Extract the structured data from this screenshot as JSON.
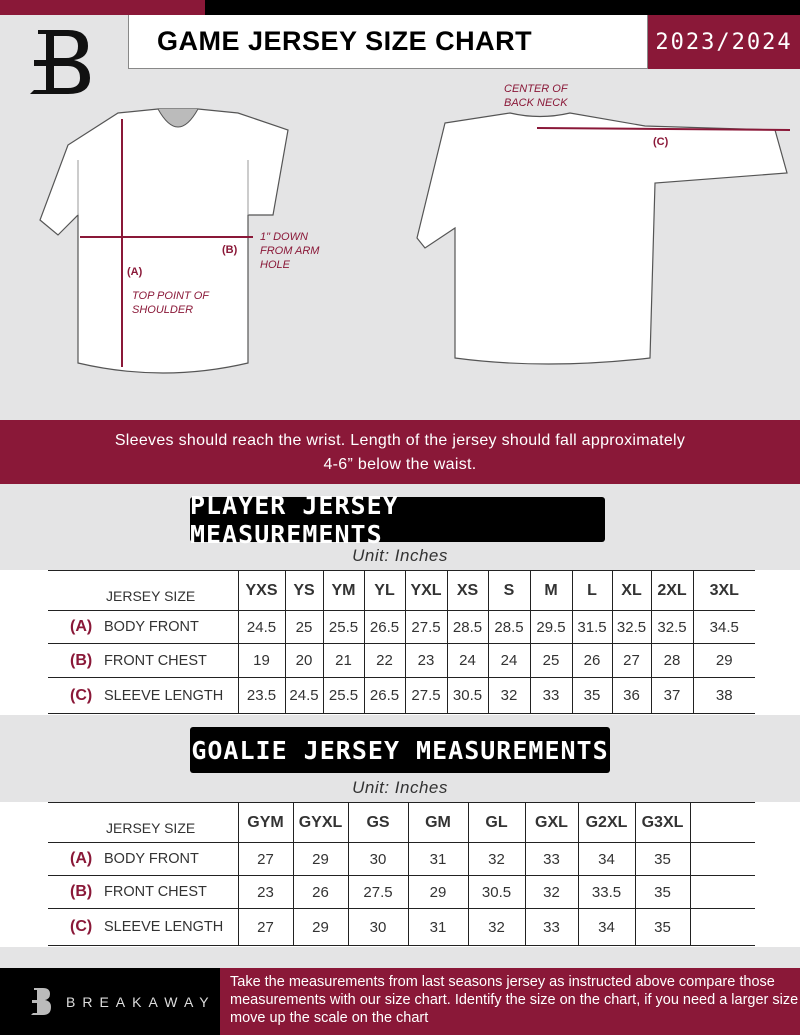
{
  "header": {
    "title": "GAME JERSEY SIZE CHART",
    "season": "2023/2024",
    "logo": "breakaway-b-logo"
  },
  "diagram": {
    "center_back_neck": "CENTER OF BACK NECK",
    "label_a": "(A)",
    "label_b": "(B)",
    "label_c": "(C)",
    "down_note": "1\" DOWN FROM ARM HOLE",
    "shoulder_note": "TOP POINT OF SHOULDER"
  },
  "instructions": "Sleeves should reach the wrist. Length of the jersey should fall approximately 4-6” below the waist.",
  "player": {
    "title": "PLAYER JERSEY MEASUREMENTS",
    "unit": "Unit: Inches",
    "size_label": "JERSEY SIZE",
    "sizes": [
      "YXS",
      "YS",
      "YM",
      "YL",
      "YXL",
      "XS",
      "S",
      "M",
      "L",
      "XL",
      "2XL",
      "3XL"
    ],
    "rows": [
      {
        "letter": "(A)",
        "label": "BODY FRONT",
        "values": [
          "24.5",
          "25",
          "25.5",
          "26.5",
          "27.5",
          "28.5",
          "28.5",
          "29.5",
          "31.5",
          "32.5",
          "32.5",
          "34.5"
        ]
      },
      {
        "letter": "(B)",
        "label": "FRONT CHEST",
        "values": [
          "19",
          "20",
          "21",
          "22",
          "23",
          "24",
          "24",
          "25",
          "26",
          "27",
          "28",
          "29"
        ]
      },
      {
        "letter": "(C)",
        "label": "SLEEVE LENGTH",
        "values": [
          "23.5",
          "24.5",
          "25.5",
          "26.5",
          "27.5",
          "30.5",
          "32",
          "33",
          "35",
          "36",
          "37",
          "38"
        ]
      }
    ]
  },
  "goalie": {
    "title": "GOALIE JERSEY MEASUREMENTS",
    "unit": "Unit: Inches",
    "size_label": "JERSEY SIZE",
    "sizes": [
      "GYM",
      "GYXL",
      "GS",
      "GM",
      "GL",
      "GXL",
      "G2XL",
      "G3XL",
      ""
    ],
    "rows": [
      {
        "letter": "(A)",
        "label": "BODY FRONT",
        "values": [
          "27",
          "29",
          "30",
          "31",
          "32",
          "33",
          "34",
          "35",
          ""
        ]
      },
      {
        "letter": "(B)",
        "label": "FRONT CHEST",
        "values": [
          "23",
          "26",
          "27.5",
          "29",
          "30.5",
          "32",
          "33.5",
          "35",
          ""
        ]
      },
      {
        "letter": "(C)",
        "label": "SLEEVE LENGTH",
        "values": [
          "27",
          "29",
          "30",
          "31",
          "32",
          "33",
          "34",
          "35",
          ""
        ]
      }
    ]
  },
  "footer": {
    "brand": "BREAKAWAY",
    "text": "Take the measurements from last seasons jersey as instructed above compare those measurements  with our size chart. Identify the size on the chart, if you need a larger size move up the scale on the chart"
  },
  "colors": {
    "accent": "#8a1838",
    "dark": "#000000",
    "background": "#e4e4e5"
  }
}
